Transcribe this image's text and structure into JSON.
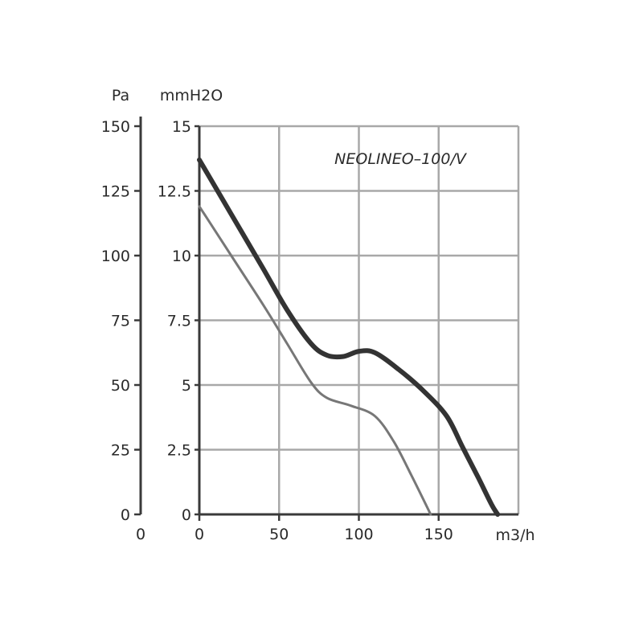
{
  "chart_data": {
    "type": "line",
    "title": "NEOLINEO–100/V",
    "xlabel": "m3/h",
    "ylabel_left": "Pa",
    "ylabel_right": "mmH2O",
    "xlim": [
      0,
      200
    ],
    "ylim_mm": [
      0,
      15
    ],
    "ylim_pa": [
      0,
      150
    ],
    "x_ticks": [
      "0",
      "50",
      "100",
      "150"
    ],
    "pa_ticks": [
      "0",
      "25",
      "50",
      "75",
      "100",
      "125",
      "150"
    ],
    "pa_origin_label": "0",
    "mm_ticks": [
      "0",
      "2.5",
      "5",
      "7.5",
      "10",
      "12.5",
      "15"
    ],
    "grid": true,
    "series": [
      {
        "color": "#333333",
        "points": [
          [
            0,
            13.7
          ],
          [
            20,
            11.6
          ],
          [
            40,
            9.5
          ],
          [
            55,
            7.9
          ],
          [
            70,
            6.6
          ],
          [
            80,
            6.15
          ],
          [
            90,
            6.1
          ],
          [
            100,
            6.3
          ],
          [
            110,
            6.25
          ],
          [
            125,
            5.6
          ],
          [
            140,
            4.8
          ],
          [
            155,
            3.8
          ],
          [
            165,
            2.6
          ],
          [
            175,
            1.4
          ],
          [
            183,
            0.4
          ],
          [
            187,
            0
          ]
        ]
      },
      {
        "color": "#777777",
        "points": [
          [
            0,
            11.9
          ],
          [
            20,
            10.0
          ],
          [
            40,
            8.1
          ],
          [
            55,
            6.6
          ],
          [
            70,
            5.1
          ],
          [
            80,
            4.5
          ],
          [
            95,
            4.2
          ],
          [
            110,
            3.8
          ],
          [
            122,
            2.8
          ],
          [
            133,
            1.5
          ],
          [
            145,
            0
          ]
        ]
      }
    ]
  },
  "colors": {
    "grid": "#a8a8a8",
    "axis": "#3a3a3a",
    "text": "#2a2a2a"
  }
}
